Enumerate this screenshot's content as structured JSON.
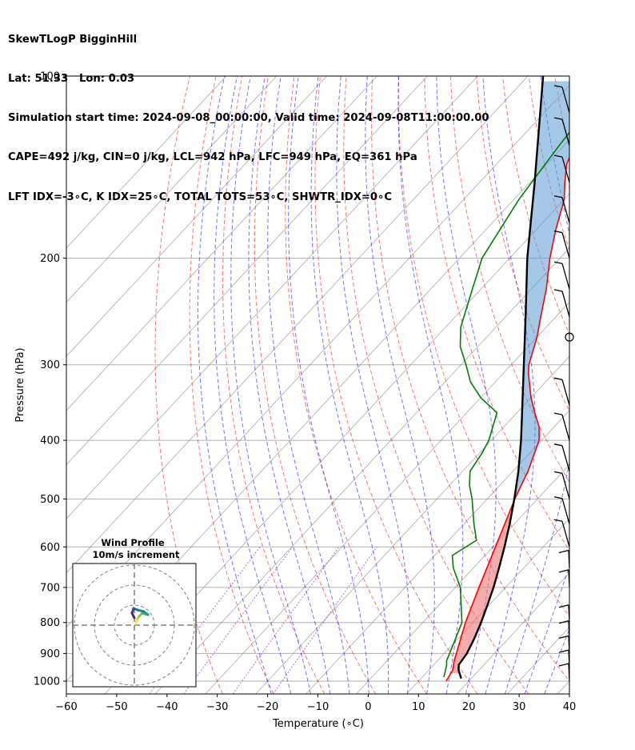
{
  "header": {
    "line1": "SkewTLogP BigginHill",
    "line2": "Lat: 51.33   Lon: 0.03",
    "line3": "Simulation start time: 2024-09-08_00:00:00, Valid time: 2024-09-08T11:00:00.00",
    "line4": "CAPE=492 j/kg, CIN=0 j/kg, LCL=942 hPa, LFC=949 hPa, EQ=361 hPa",
    "line5": "LFT IDX=-3∘C, K IDX=25∘C, TOTAL TOTS=53∘C, SHWTR_IDX=0∘C"
  },
  "colors": {
    "temperature": "#ff0000",
    "dewpoint": "#008000",
    "parcel": "#000000",
    "cape_fill": "#5b9bd5",
    "cin_fill": "#f08080",
    "dry_adiabat": "#ff0000",
    "moist_adiabat": "#0000ff",
    "mixing_ratio": "#9400d3",
    "isotherm": "#808080"
  },
  "chart_data": {
    "type": "line",
    "xlabel": "Temperature (∘C)",
    "ylabel": "Pressure (hPa)",
    "xlim": [
      -60,
      40
    ],
    "ylim": [
      1050,
      100
    ],
    "y_scale": "log",
    "x_ticks": [
      "−60",
      "−50",
      "−40",
      "−30",
      "−20",
      "−10",
      "0",
      "10",
      "20",
      "30",
      "40"
    ],
    "y_ticks": [
      "1000",
      "900",
      "800",
      "700",
      "600",
      "500",
      "400",
      "300",
      "200",
      "100"
    ],
    "grid": true,
    "series": [
      {
        "key": "temperature",
        "points": [
          [
            1000,
            15.5
          ],
          [
            960,
            14.8
          ],
          [
            925,
            13.3
          ],
          [
            850,
            10.5
          ],
          [
            800,
            8.5
          ],
          [
            700,
            4.7
          ],
          [
            600,
            0.5
          ],
          [
            500,
            -4.5
          ],
          [
            450,
            -7
          ],
          [
            400,
            -10.5
          ],
          [
            380,
            -13
          ],
          [
            360,
            -16.5
          ],
          [
            340,
            -20
          ],
          [
            310,
            -25
          ],
          [
            300,
            -26.5
          ],
          [
            270,
            -30
          ],
          [
            250,
            -33
          ],
          [
            225,
            -37
          ],
          [
            200,
            -42
          ],
          [
            180,
            -46
          ],
          [
            160,
            -50
          ],
          [
            150,
            -53
          ],
          [
            140,
            -56
          ],
          [
            130,
            -58
          ],
          [
            110,
            -62
          ],
          [
            100,
            -64
          ]
        ]
      },
      {
        "key": "dewpoint",
        "points": [
          [
            985,
            14.3
          ],
          [
            940,
            12.6
          ],
          [
            925,
            11.8
          ],
          [
            850,
            9.5
          ],
          [
            800,
            7.8
          ],
          [
            700,
            1
          ],
          [
            650,
            -4
          ],
          [
            620,
            -6.5
          ],
          [
            585,
            -4.5
          ],
          [
            550,
            -8
          ],
          [
            500,
            -13
          ],
          [
            475,
            -16
          ],
          [
            450,
            -18.5
          ],
          [
            420,
            -19.5
          ],
          [
            400,
            -20.5
          ],
          [
            360,
            -24
          ],
          [
            340,
            -30
          ],
          [
            320,
            -35
          ],
          [
            300,
            -39
          ],
          [
            280,
            -43.5
          ],
          [
            260,
            -47
          ],
          [
            230,
            -51
          ],
          [
            200,
            -55.5
          ],
          [
            160,
            -59
          ],
          [
            130,
            -61
          ],
          [
            100,
            -63
          ]
        ]
      },
      {
        "key": "parcel",
        "points": [
          [
            990,
            18
          ],
          [
            960,
            16
          ],
          [
            940,
            15
          ],
          [
            900,
            14.5
          ],
          [
            850,
            13.2
          ],
          [
            800,
            11.6
          ],
          [
            750,
            9.7
          ],
          [
            700,
            7.6
          ],
          [
            650,
            5.1
          ],
          [
            600,
            2.3
          ],
          [
            550,
            -0.9
          ],
          [
            500,
            -4.6
          ],
          [
            450,
            -8.9
          ],
          [
            400,
            -14.1
          ],
          [
            360,
            -19
          ],
          [
            300,
            -27.5
          ],
          [
            250,
            -36
          ],
          [
            200,
            -46.5
          ],
          [
            150,
            -59
          ],
          [
            100,
            -77
          ]
        ]
      }
    ],
    "wind_barbs": [
      {
        "p": 1000,
        "shaft": "light"
      },
      {
        "p": 950,
        "shaft": "light"
      },
      {
        "p": 900,
        "shaft": "light"
      },
      {
        "p": 850,
        "shaft": "light"
      },
      {
        "p": 800,
        "shaft": "light"
      },
      {
        "p": 700,
        "shaft": "light"
      },
      {
        "p": 650,
        "shaft": "light"
      },
      {
        "p": 600,
        "shaft": "full"
      },
      {
        "p": 550,
        "shaft": "full"
      },
      {
        "p": 500,
        "shaft": "full"
      },
      {
        "p": 450,
        "shaft": "full"
      },
      {
        "p": 400,
        "shaft": "full"
      },
      {
        "p": 350,
        "shaft": "full"
      },
      {
        "p": 270,
        "shaft": "calm"
      },
      {
        "p": 250,
        "shaft": "full"
      },
      {
        "p": 225,
        "shaft": "full"
      },
      {
        "p": 200,
        "shaft": "full"
      },
      {
        "p": 175,
        "shaft": "full"
      },
      {
        "p": 150,
        "shaft": "full"
      },
      {
        "p": 130,
        "shaft": "full"
      },
      {
        "p": 115,
        "shaft": "full"
      }
    ],
    "inset": {
      "title": "Wind Profile",
      "subtitle": "10m/s increment"
    }
  }
}
